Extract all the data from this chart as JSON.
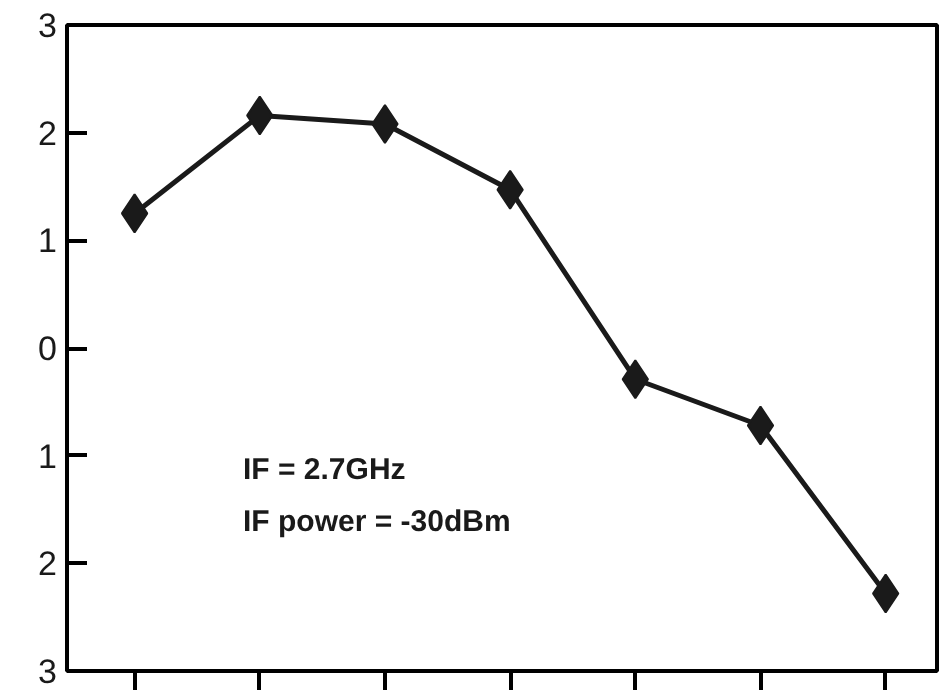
{
  "chart_data": {
    "type": "line",
    "categories": [
      null,
      null,
      null,
      null,
      null,
      null,
      null
    ],
    "series": [
      {
        "color": "#1a1a1a",
        "values": [
          1.25,
          2.16,
          2.08,
          1.47,
          -0.29,
          -0.72,
          -2.28
        ]
      }
    ],
    "ylim": [
      -3,
      3
    ],
    "yticks": [
      {
        "value": -3,
        "label": "3"
      },
      {
        "value": -2,
        "label": "2"
      },
      {
        "value": -1,
        "label": "1"
      },
      0,
      1,
      2,
      3
    ],
    "tick_labels": "y",
    "marker": "diamond",
    "line_style": "solid",
    "grid": false,
    "annotations": [
      "IF = 2.7GHz",
      "IF power = -30dBm"
    ]
  }
}
